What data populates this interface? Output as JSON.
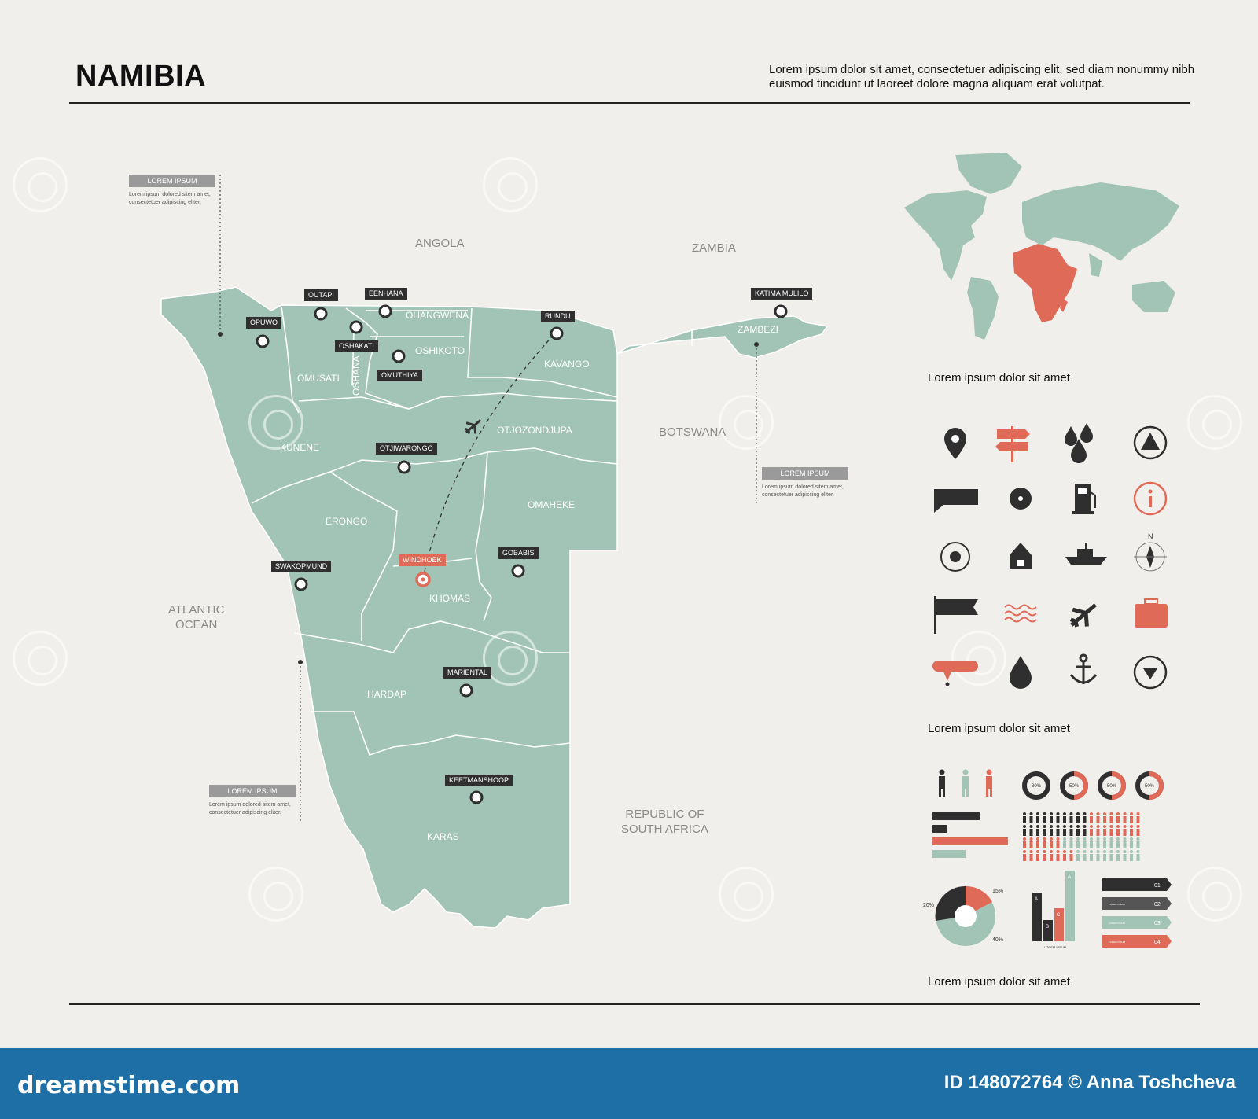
{
  "header": {
    "title": "NAMIBIA",
    "intro": "Lorem ipsum dolor sit amet, consectetuer adipiscing elit, sed diam nonummy nibh euismod tincidunt ut laoreet dolore magna aliquam erat volutpat."
  },
  "neighbors": {
    "angola": "ANGOLA",
    "zambia": "ZAMBIA",
    "botswana": "BOTSWANA",
    "south_africa_1": "REPUBLIC OF",
    "south_africa_2": "SOUTH AFRICA",
    "ocean_1": "ATLANTIC",
    "ocean_2": "OCEAN"
  },
  "regions": {
    "ohangwena": "OHANGWENA",
    "oshikoto": "OSHIKOTO",
    "omusati": "OMUSATI",
    "oshana": "OSHANA",
    "kavango": "KAVANGO",
    "kunene": "KUNENE",
    "otjozondjupa": "OTJOZONDJUPA",
    "erongo": "ERONGO",
    "omaheke": "OMAHEKE",
    "khomas": "KHOMAS",
    "hardap": "HARDAP",
    "karas": "KARAS",
    "zambezi": "ZAMBEZI"
  },
  "cities": {
    "outapi": "OUTAPI",
    "eenhana": "EENHANA",
    "opuwo": "OPUWO",
    "oshakati": "OSHAKATI",
    "omuthiya": "OMUTHIYA",
    "rundu": "RUNDU",
    "katima_mulilo": "KATIMA MULILO",
    "otjiwarongo": "OTJIWARONGO",
    "windhoek": "WINDHOEK",
    "gobabis": "GOBABIS",
    "swakopmund": "SWAKOPMUND",
    "mariental": "MARIENTAL",
    "keetmanshoop": "KEETMANSHOOP"
  },
  "notes": {
    "heading": "LOREM IPSUM",
    "body": "Lorem ipsum dolored sitem amet, consectetuer adipiscing eliter."
  },
  "captions": {
    "world": "Lorem ipsum dolor sit amet",
    "icons": "Lorem ipsum dolor sit amet",
    "infographics": "Lorem ipsum dolor sit amet"
  },
  "infographics": {
    "donut_labels": [
      "30%",
      "50%",
      "50%",
      "50%"
    ],
    "pie_labels": [
      "20%",
      "15%",
      "40%"
    ],
    "bar_labels": [
      "A",
      "B",
      "C",
      "A"
    ],
    "bar_caption": "LOREM IPSUM",
    "steps": [
      "01",
      "02",
      "03",
      "04"
    ],
    "step_text": "LOREM IPSUM"
  },
  "icons": [
    "location-pin-icon",
    "signpost-icon",
    "water-drops-icon",
    "warning-icon",
    "flag-banner-icon",
    "disc-icon",
    "fuel-pump-icon",
    "info-icon",
    "target-icon",
    "house-icon",
    "ship-icon",
    "compass-icon",
    "flag-icon",
    "waves-icon",
    "airplane-icon",
    "suitcase-icon",
    "pin-marker-icon",
    "drop-icon",
    "anchor-icon",
    "down-arrow-icon"
  ],
  "compass_n": "N",
  "footer": {
    "brand": "dreamstime.com",
    "credit": "ID 148072764 © Anna Toshcheva"
  },
  "colors": {
    "land": "#a1c4b7",
    "accent": "#e06a58",
    "dark": "#2f2f2f",
    "footer": "#1d6fa5",
    "background": "#f1efeb"
  }
}
